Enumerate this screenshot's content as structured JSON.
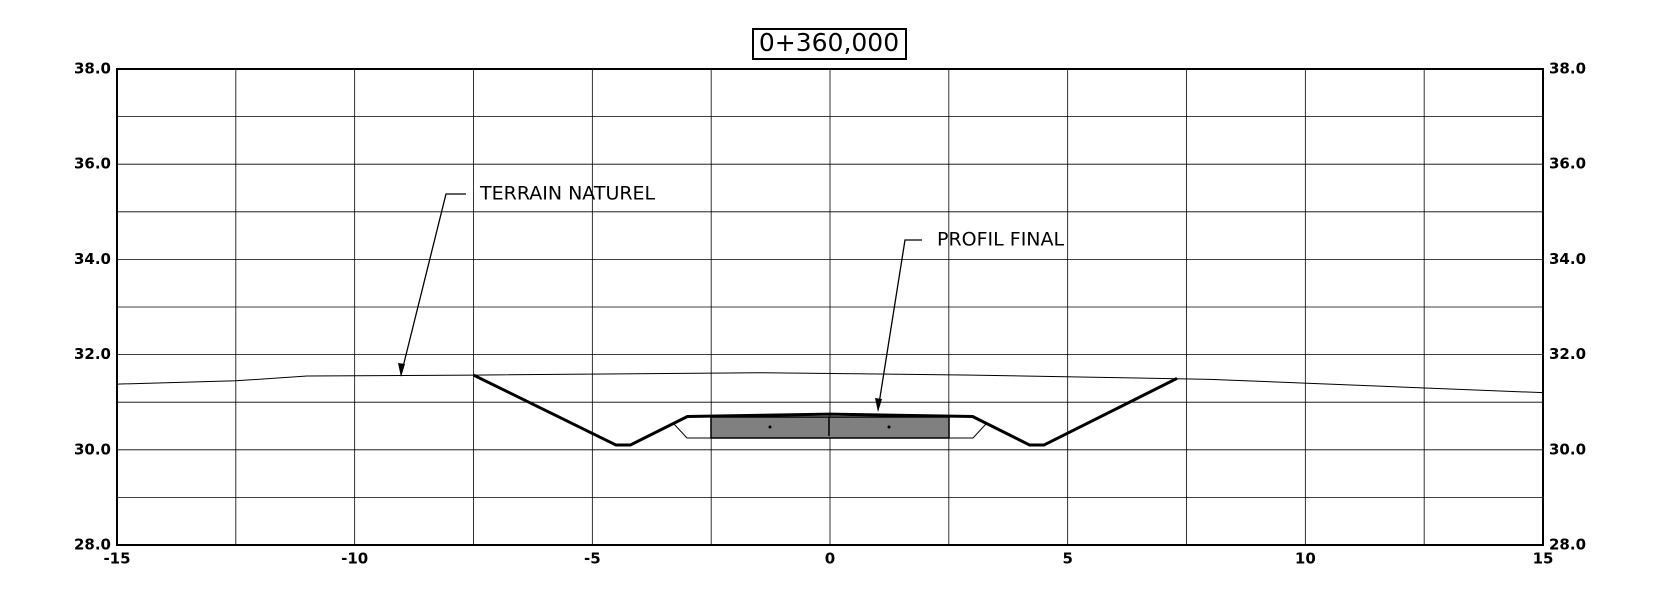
{
  "chart_data": {
    "type": "line",
    "title": "0+360,000",
    "annotations": [
      "TERRAIN NATUREL",
      "PROFIL FINAL"
    ],
    "series": [
      {
        "name": "TERRAIN NATUREL",
        "color": "#000000",
        "width": 1,
        "x": [
          -15,
          -12.5,
          -11,
          -7.5,
          -1.5,
          3,
          8,
          15
        ],
        "values": [
          31.38,
          31.45,
          31.55,
          31.57,
          31.62,
          31.57,
          31.48,
          31.2
        ]
      },
      {
        "name": "PROFIL FINAL",
        "color": "#000000",
        "width": 3,
        "x": [
          -7.5,
          -4.5,
          -4.2,
          -3,
          0,
          3,
          4.2,
          4.5,
          7.3
        ],
        "values": [
          31.57,
          30.1,
          30.1,
          30.7,
          30.75,
          30.7,
          30.1,
          30.1,
          31.5
        ]
      }
    ],
    "xlim": [
      -15,
      15
    ],
    "ylim": [
      28,
      38
    ],
    "xticks": [
      -15,
      -10,
      -5,
      0,
      5,
      10,
      15
    ],
    "yticks": [
      {
        "value": 28,
        "label": "28.0"
      },
      {
        "value": 30,
        "label": "30.0"
      },
      {
        "value": 32,
        "label": "32.0"
      },
      {
        "value": 34,
        "label": "34.0"
      },
      {
        "value": 36,
        "label": "36.0"
      },
      {
        "value": 38,
        "label": "38.0"
      }
    ],
    "xgrid": [
      -12.5,
      -10,
      -7.5,
      -5,
      -2.5,
      0,
      2.5,
      5,
      7.5,
      10,
      12.5
    ],
    "ygrid": [
      29,
      30,
      31,
      32,
      33,
      34,
      35,
      36,
      37
    ],
    "grid": true
  }
}
